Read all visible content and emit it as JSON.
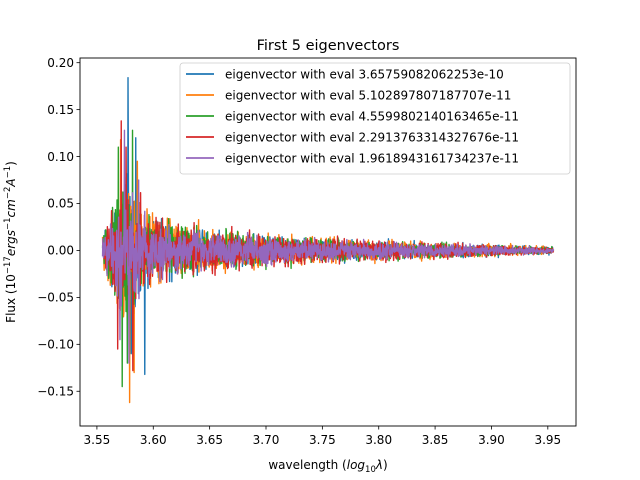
{
  "chart_data": {
    "type": "line",
    "title": "First 5 eigenvectors",
    "xlabel": "wavelength ($log_{10}\\lambda$)",
    "ylabel": "Flux ($10^{-17} ergs^{-1} cm^{-2} A^{-1}$)",
    "xlim": [
      3.535,
      3.975
    ],
    "ylim": [
      -0.187,
      0.205
    ],
    "x_range": [
      3.555,
      3.955
    ],
    "xticks": [
      3.55,
      3.6,
      3.65,
      3.7,
      3.75,
      3.8,
      3.85,
      3.9,
      3.95
    ],
    "xtick_labels": [
      "3.55",
      "3.60",
      "3.65",
      "3.70",
      "3.75",
      "3.80",
      "3.85",
      "3.90",
      "3.95"
    ],
    "yticks": [
      -0.15,
      -0.1,
      -0.05,
      0.0,
      0.05,
      0.1,
      0.15,
      0.2
    ],
    "ytick_labels": [
      "−0.15",
      "−0.10",
      "−0.05",
      "0.00",
      "0.05",
      "0.10",
      "0.15",
      "0.20"
    ],
    "grid": false,
    "legend_position": "upper right",
    "series": [
      {
        "name": "eigenvector with eval 3.65759082062253e-10",
        "color": "#1f77b4",
        "envelope": [
          [
            3.555,
            0.025
          ],
          [
            3.565,
            0.07
          ],
          [
            3.572,
            0.09
          ],
          [
            3.578,
            0.184
          ],
          [
            3.585,
            0.08
          ],
          [
            3.6,
            0.05
          ],
          [
            3.65,
            0.03
          ],
          [
            3.7,
            0.022
          ],
          [
            3.75,
            0.018
          ],
          [
            3.8,
            0.015
          ],
          [
            3.85,
            0.012
          ],
          [
            3.9,
            0.01
          ],
          [
            3.955,
            0.006
          ]
        ],
        "peaks": [
          [
            3.5775,
            0.184
          ],
          [
            3.5925,
            -0.132
          ],
          [
            3.5845,
            0.12
          ],
          [
            3.5805,
            -0.11
          ]
        ]
      },
      {
        "name": "eigenvector with eval 5.102897807187707e-11",
        "color": "#ff7f0e",
        "envelope": [
          [
            3.555,
            0.03
          ],
          [
            3.565,
            0.08
          ],
          [
            3.572,
            0.11
          ],
          [
            3.58,
            0.105
          ],
          [
            3.59,
            0.08
          ],
          [
            3.6,
            0.06
          ],
          [
            3.65,
            0.035
          ],
          [
            3.7,
            0.025
          ],
          [
            3.75,
            0.02
          ],
          [
            3.8,
            0.016
          ],
          [
            3.85,
            0.013
          ],
          [
            3.9,
            0.01
          ],
          [
            3.955,
            0.006
          ]
        ],
        "peaks": [
          [
            3.579,
            -0.162
          ],
          [
            3.571,
            0.118
          ],
          [
            3.586,
            0.095
          ],
          [
            3.583,
            -0.13
          ]
        ]
      },
      {
        "name": "eigenvector with eval 4.5599802140163465e-11",
        "color": "#2ca02c",
        "envelope": [
          [
            3.555,
            0.025
          ],
          [
            3.565,
            0.07
          ],
          [
            3.572,
            0.1
          ],
          [
            3.58,
            0.1
          ],
          [
            3.59,
            0.07
          ],
          [
            3.6,
            0.05
          ],
          [
            3.65,
            0.035
          ],
          [
            3.7,
            0.025
          ],
          [
            3.75,
            0.02
          ],
          [
            3.8,
            0.015
          ],
          [
            3.85,
            0.012
          ],
          [
            3.9,
            0.009
          ],
          [
            3.955,
            0.005
          ]
        ],
        "peaks": [
          [
            3.5725,
            -0.145
          ],
          [
            3.5815,
            0.128
          ],
          [
            3.569,
            0.11
          ],
          [
            3.577,
            -0.12
          ]
        ]
      },
      {
        "name": "eigenvector with eval 2.2913763314327676e-11",
        "color": "#d62728",
        "envelope": [
          [
            3.555,
            0.02
          ],
          [
            3.565,
            0.07
          ],
          [
            3.572,
            0.1
          ],
          [
            3.58,
            0.095
          ],
          [
            3.59,
            0.07
          ],
          [
            3.6,
            0.05
          ],
          [
            3.65,
            0.035
          ],
          [
            3.7,
            0.028
          ],
          [
            3.75,
            0.022
          ],
          [
            3.8,
            0.017
          ],
          [
            3.85,
            0.013
          ],
          [
            3.9,
            0.01
          ],
          [
            3.955,
            0.005
          ]
        ],
        "peaks": [
          [
            3.5715,
            0.138
          ],
          [
            3.582,
            -0.128
          ],
          [
            3.576,
            0.11
          ],
          [
            3.5685,
            -0.105
          ]
        ]
      },
      {
        "name": "eigenvector with eval 1.9618943161734237e-11",
        "color": "#9467bd",
        "envelope": [
          [
            3.555,
            0.02
          ],
          [
            3.565,
            0.06
          ],
          [
            3.572,
            0.085
          ],
          [
            3.58,
            0.085
          ],
          [
            3.59,
            0.06
          ],
          [
            3.6,
            0.045
          ],
          [
            3.65,
            0.03
          ],
          [
            3.7,
            0.022
          ],
          [
            3.75,
            0.018
          ],
          [
            3.8,
            0.014
          ],
          [
            3.85,
            0.011
          ],
          [
            3.9,
            0.008
          ],
          [
            3.955,
            0.005
          ]
        ],
        "peaks": [
          [
            3.5745,
            0.128
          ],
          [
            3.5785,
            -0.12
          ],
          [
            3.5705,
            -0.095
          ],
          [
            3.587,
            0.075
          ]
        ]
      }
    ]
  }
}
